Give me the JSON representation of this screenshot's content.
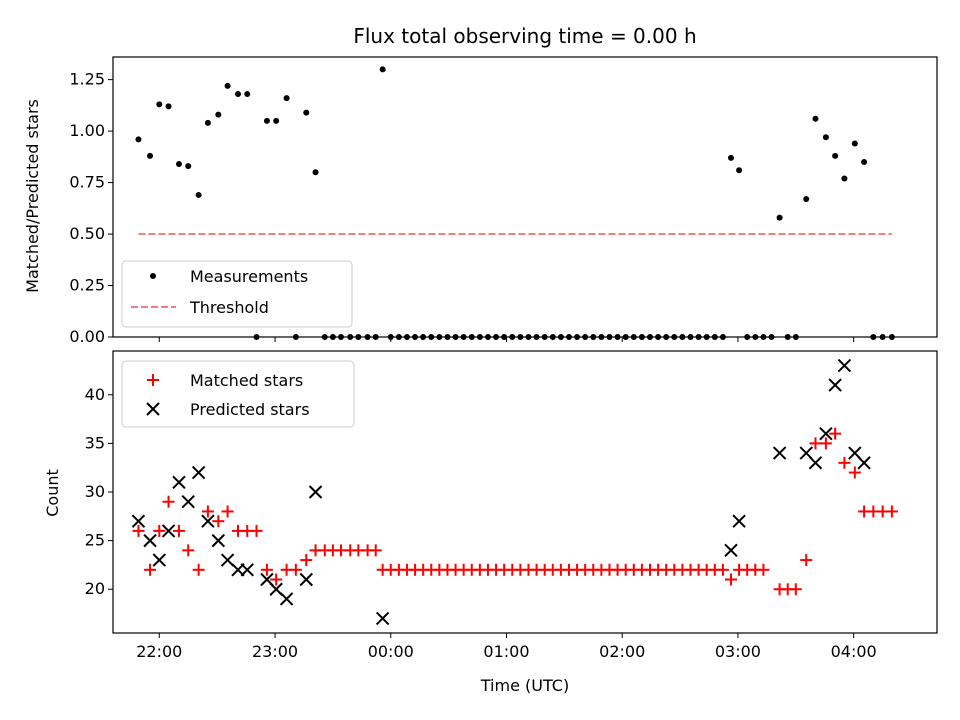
{
  "chart_data": [
    {
      "type": "scatter",
      "title": "Flux total observing time = 0.00 h",
      "xlabel": "",
      "ylabel": "Matched/Predicted stars",
      "xlim_hours": [
        21.6,
        28.72
      ],
      "ylim": [
        0,
        1.36
      ],
      "yticks": [
        0.0,
        0.25,
        0.5,
        0.75,
        1.0,
        1.25
      ],
      "ytick_labels": [
        "0.00",
        "0.25",
        "0.50",
        "0.75",
        "1.00",
        "1.25"
      ],
      "xticks_hours": [
        22,
        23,
        24,
        25,
        26,
        27,
        28
      ],
      "show_xtick_labels": false,
      "legend": {
        "position": "lower-left",
        "entries": [
          {
            "label": "Measurements",
            "marker": "dot",
            "color": "#000000"
          },
          {
            "label": "Threshold",
            "marker": "dashed-line",
            "color": "#f08080"
          }
        ]
      },
      "series": [
        {
          "name": "Measurements",
          "marker": "dot",
          "color": "#000000",
          "points": [
            [
              21.82,
              0.96
            ],
            [
              21.92,
              0.88
            ],
            [
              22.0,
              1.13
            ],
            [
              22.08,
              1.12
            ],
            [
              22.17,
              0.84
            ],
            [
              22.25,
              0.83
            ],
            [
              22.34,
              0.69
            ],
            [
              22.42,
              1.04
            ],
            [
              22.51,
              1.08
            ],
            [
              22.59,
              1.22
            ],
            [
              22.68,
              1.18
            ],
            [
              22.76,
              1.18
            ],
            [
              22.84,
              0.0
            ],
            [
              22.93,
              1.05
            ],
            [
              23.01,
              1.05
            ],
            [
              23.1,
              1.16
            ],
            [
              23.18,
              0.0
            ],
            [
              23.27,
              1.09
            ],
            [
              23.35,
              0.8
            ],
            [
              23.43,
              0.0
            ],
            [
              23.5,
              0.0
            ],
            [
              23.57,
              0.0
            ],
            [
              23.65,
              0.0
            ],
            [
              23.72,
              0.0
            ],
            [
              23.8,
              0.0
            ],
            [
              23.87,
              0.0
            ],
            [
              23.93,
              1.3
            ],
            [
              24.0,
              0.0
            ],
            [
              24.07,
              0.0
            ],
            [
              24.14,
              0.0
            ],
            [
              24.21,
              0.0
            ],
            [
              24.28,
              0.0
            ],
            [
              24.35,
              0.0
            ],
            [
              24.42,
              0.0
            ],
            [
              24.49,
              0.0
            ],
            [
              24.56,
              0.0
            ],
            [
              24.63,
              0.0
            ],
            [
              24.7,
              0.0
            ],
            [
              24.77,
              0.0
            ],
            [
              24.84,
              0.0
            ],
            [
              24.91,
              0.0
            ],
            [
              24.98,
              0.0
            ],
            [
              25.05,
              0.0
            ],
            [
              25.12,
              0.0
            ],
            [
              25.19,
              0.0
            ],
            [
              25.26,
              0.0
            ],
            [
              25.33,
              0.0
            ],
            [
              25.4,
              0.0
            ],
            [
              25.47,
              0.0
            ],
            [
              25.54,
              0.0
            ],
            [
              25.61,
              0.0
            ],
            [
              25.68,
              0.0
            ],
            [
              25.75,
              0.0
            ],
            [
              25.82,
              0.0
            ],
            [
              25.89,
              0.0
            ],
            [
              25.96,
              0.0
            ],
            [
              26.03,
              0.0
            ],
            [
              26.1,
              0.0
            ],
            [
              26.17,
              0.0
            ],
            [
              26.24,
              0.0
            ],
            [
              26.31,
              0.0
            ],
            [
              26.38,
              0.0
            ],
            [
              26.45,
              0.0
            ],
            [
              26.52,
              0.0
            ],
            [
              26.59,
              0.0
            ],
            [
              26.66,
              0.0
            ],
            [
              26.73,
              0.0
            ],
            [
              26.8,
              0.0
            ],
            [
              26.87,
              0.0
            ],
            [
              26.94,
              0.87
            ],
            [
              27.01,
              0.81
            ],
            [
              27.08,
              0.0
            ],
            [
              27.15,
              0.0
            ],
            [
              27.22,
              0.0
            ],
            [
              27.29,
              0.0
            ],
            [
              27.36,
              0.58
            ],
            [
              27.43,
              0.0
            ],
            [
              27.5,
              0.0
            ],
            [
              27.59,
              0.67
            ],
            [
              27.67,
              1.06
            ],
            [
              27.76,
              0.97
            ],
            [
              27.84,
              0.88
            ],
            [
              27.92,
              0.77
            ],
            [
              28.01,
              0.94
            ],
            [
              28.09,
              0.85
            ],
            [
              28.17,
              0.0
            ],
            [
              28.25,
              0.0
            ],
            [
              28.33,
              0.0
            ]
          ]
        },
        {
          "name": "Threshold",
          "marker": "dashed-line",
          "color": "#f08080",
          "points": [
            [
              21.82,
              0.5
            ],
            [
              28.33,
              0.5
            ]
          ]
        }
      ]
    },
    {
      "type": "scatter",
      "title": "",
      "xlabel": "Time (UTC)",
      "ylabel": "Count",
      "xlim_hours": [
        21.6,
        28.72
      ],
      "ylim": [
        15.5,
        44.5
      ],
      "yticks": [
        20,
        25,
        30,
        35,
        40
      ],
      "ytick_labels": [
        "20",
        "25",
        "30",
        "35",
        "40"
      ],
      "xticks_hours": [
        22,
        23,
        24,
        25,
        26,
        27,
        28
      ],
      "xtick_labels": [
        "22:00",
        "23:00",
        "00:00",
        "01:00",
        "02:00",
        "03:00",
        "04:00"
      ],
      "legend": {
        "position": "top-left",
        "entries": [
          {
            "label": "Matched stars",
            "marker": "plus",
            "color": "#ff0000"
          },
          {
            "label": "Predicted stars",
            "marker": "x",
            "color": "#000000"
          }
        ]
      },
      "series": [
        {
          "name": "Matched stars",
          "marker": "plus",
          "color": "#ff0000",
          "points": [
            [
              21.82,
              26
            ],
            [
              21.92,
              22
            ],
            [
              22.0,
              26
            ],
            [
              22.08,
              29
            ],
            [
              22.17,
              26
            ],
            [
              22.25,
              24
            ],
            [
              22.34,
              22
            ],
            [
              22.42,
              28
            ],
            [
              22.51,
              27
            ],
            [
              22.59,
              28
            ],
            [
              22.68,
              26
            ],
            [
              22.76,
              26
            ],
            [
              22.84,
              26
            ],
            [
              22.93,
              22
            ],
            [
              23.01,
              21
            ],
            [
              23.1,
              22
            ],
            [
              23.18,
              22
            ],
            [
              23.27,
              23
            ],
            [
              23.35,
              24
            ],
            [
              23.43,
              24
            ],
            [
              23.5,
              24
            ],
            [
              23.57,
              24
            ],
            [
              23.65,
              24
            ],
            [
              23.72,
              24
            ],
            [
              23.8,
              24
            ],
            [
              23.87,
              24
            ],
            [
              23.93,
              22
            ],
            [
              24.0,
              22
            ],
            [
              24.07,
              22
            ],
            [
              24.14,
              22
            ],
            [
              24.21,
              22
            ],
            [
              24.28,
              22
            ],
            [
              24.35,
              22
            ],
            [
              24.42,
              22
            ],
            [
              24.49,
              22
            ],
            [
              24.56,
              22
            ],
            [
              24.63,
              22
            ],
            [
              24.7,
              22
            ],
            [
              24.77,
              22
            ],
            [
              24.84,
              22
            ],
            [
              24.91,
              22
            ],
            [
              24.98,
              22
            ],
            [
              25.05,
              22
            ],
            [
              25.12,
              22
            ],
            [
              25.19,
              22
            ],
            [
              25.26,
              22
            ],
            [
              25.33,
              22
            ],
            [
              25.4,
              22
            ],
            [
              25.47,
              22
            ],
            [
              25.54,
              22
            ],
            [
              25.61,
              22
            ],
            [
              25.68,
              22
            ],
            [
              25.75,
              22
            ],
            [
              25.82,
              22
            ],
            [
              25.89,
              22
            ],
            [
              25.96,
              22
            ],
            [
              26.03,
              22
            ],
            [
              26.1,
              22
            ],
            [
              26.17,
              22
            ],
            [
              26.24,
              22
            ],
            [
              26.31,
              22
            ],
            [
              26.38,
              22
            ],
            [
              26.45,
              22
            ],
            [
              26.52,
              22
            ],
            [
              26.59,
              22
            ],
            [
              26.66,
              22
            ],
            [
              26.73,
              22
            ],
            [
              26.8,
              22
            ],
            [
              26.87,
              22
            ],
            [
              26.94,
              21
            ],
            [
              27.01,
              22
            ],
            [
              27.08,
              22
            ],
            [
              27.15,
              22
            ],
            [
              27.22,
              22
            ],
            [
              27.36,
              20
            ],
            [
              27.43,
              20
            ],
            [
              27.5,
              20
            ],
            [
              27.59,
              23
            ],
            [
              27.67,
              35
            ],
            [
              27.76,
              35
            ],
            [
              27.84,
              36
            ],
            [
              27.92,
              33
            ],
            [
              28.01,
              32
            ],
            [
              28.09,
              28
            ],
            [
              28.17,
              28
            ],
            [
              28.25,
              28
            ],
            [
              28.33,
              28
            ]
          ]
        },
        {
          "name": "Predicted stars",
          "marker": "x",
          "color": "#000000",
          "points": [
            [
              21.82,
              27
            ],
            [
              21.92,
              25
            ],
            [
              22.0,
              23
            ],
            [
              22.08,
              26
            ],
            [
              22.17,
              31
            ],
            [
              22.25,
              29
            ],
            [
              22.34,
              32
            ],
            [
              22.42,
              27
            ],
            [
              22.51,
              25
            ],
            [
              22.59,
              23
            ],
            [
              22.68,
              22
            ],
            [
              22.76,
              22
            ],
            [
              22.93,
              21
            ],
            [
              23.01,
              20
            ],
            [
              23.1,
              19
            ],
            [
              23.27,
              21
            ],
            [
              23.35,
              30
            ],
            [
              23.93,
              17
            ],
            [
              26.94,
              24
            ],
            [
              27.01,
              27
            ],
            [
              27.36,
              34
            ],
            [
              27.59,
              34
            ],
            [
              27.67,
              33
            ],
            [
              27.76,
              36
            ],
            [
              27.84,
              41
            ],
            [
              27.92,
              43
            ],
            [
              28.01,
              34
            ],
            [
              28.09,
              33
            ]
          ]
        }
      ]
    }
  ]
}
